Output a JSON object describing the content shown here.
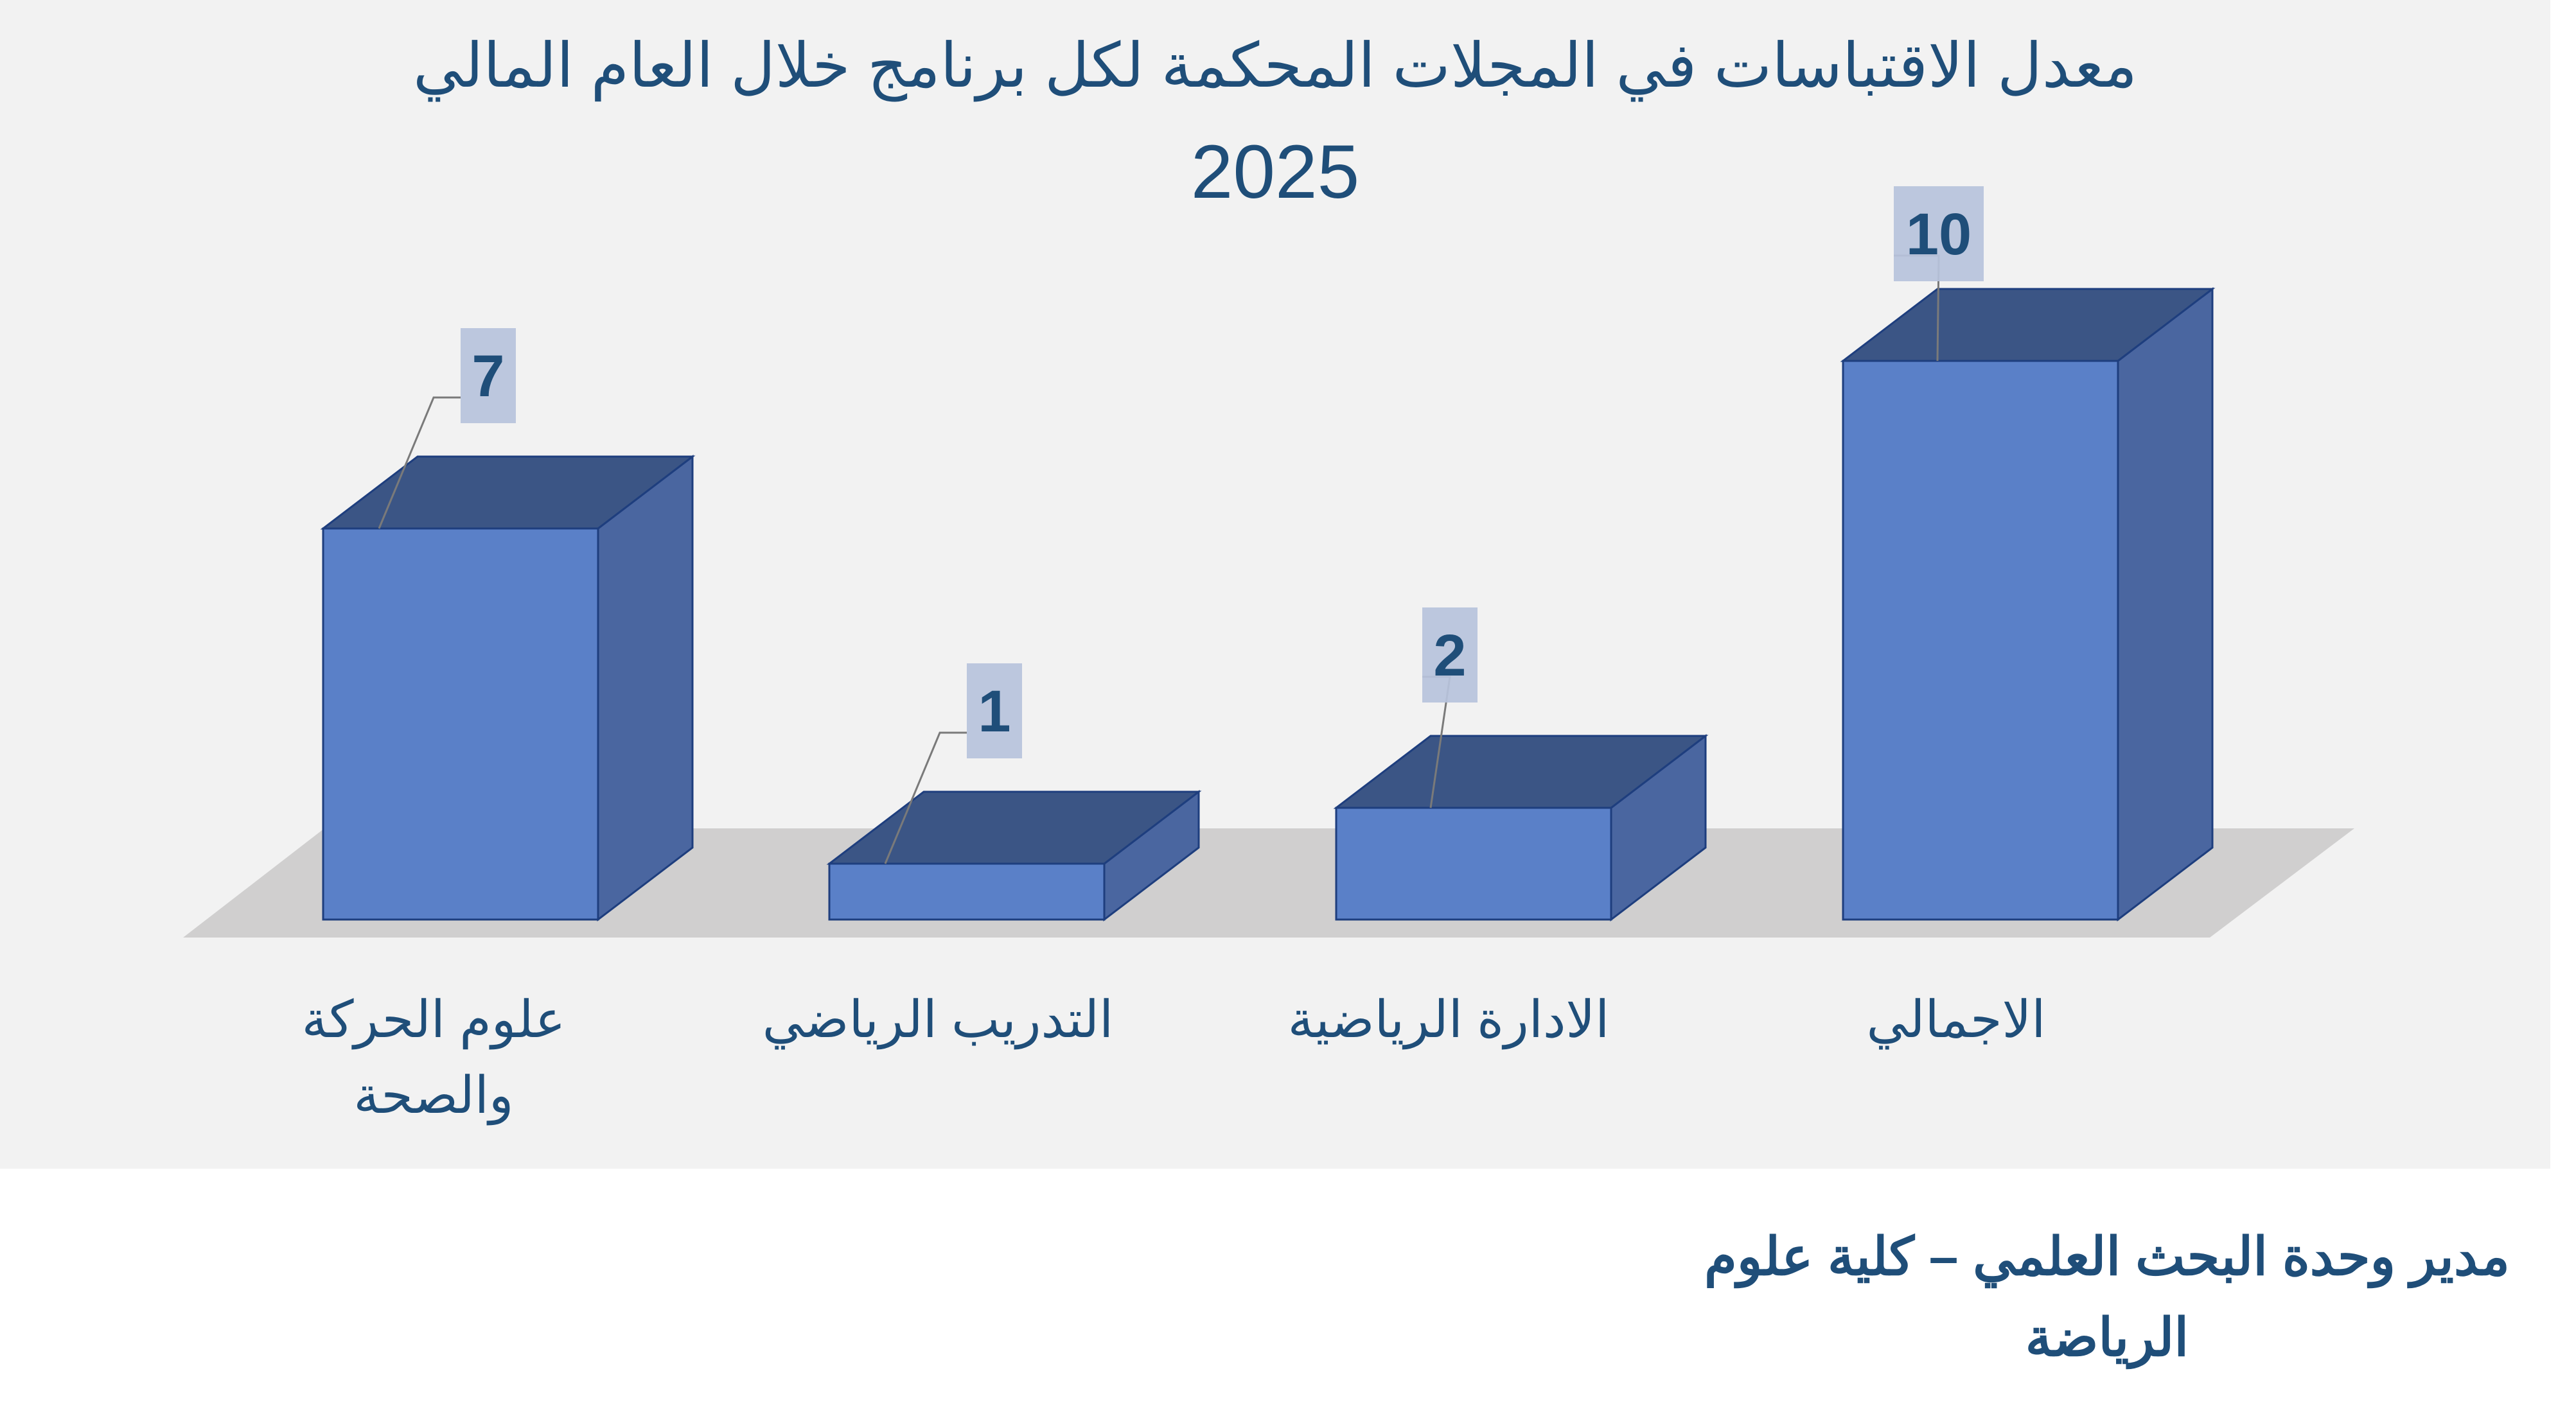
{
  "chart_data": {
    "type": "bar",
    "title": "معدل الاقتباسات في المجلات المحكمة لكل برنامج خلال العام المالي",
    "subtitle": "2025",
    "categories": [
      "علوم الحركة والصحة",
      "التدريب الرياضي",
      "الادارة الرياضية",
      "الاجمالي"
    ],
    "category_lines": [
      [
        "علوم الحركة",
        "والصحة"
      ],
      [
        "التدريب الرياضي"
      ],
      [
        "الادارة الرياضية"
      ],
      [
        "الاجمالي"
      ]
    ],
    "values": [
      7,
      1,
      2,
      10
    ],
    "data_labels": [
      "7",
      "1",
      "2",
      "10"
    ],
    "ylim": [
      0,
      10
    ],
    "grid": false,
    "bar_style": "3d-box",
    "colors": {
      "front": "#5a80c8",
      "top": "#3b5585",
      "side": "#4a66a0",
      "edge": "#1e3e7e",
      "floor": "#d0cfcf",
      "label_box": "#b7c3dc",
      "text": "#1f4e79"
    }
  },
  "footer": {
    "line1": "مدير وحدة البحث العلمي – كلية علوم",
    "line2": "الرياضة"
  }
}
